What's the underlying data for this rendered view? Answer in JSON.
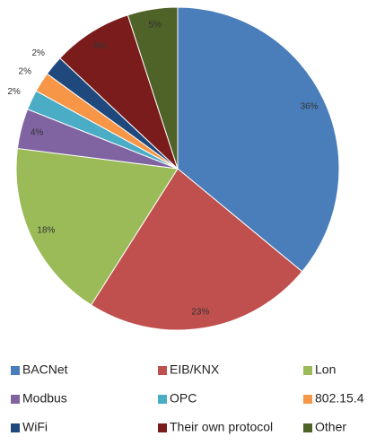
{
  "chart_data": {
    "type": "pie",
    "categories": [
      "BACNet",
      "EIB/KNX",
      "Lon",
      "Modbus",
      "OPC",
      "802.15.4",
      "WiFi",
      "Their  own protocol",
      "Other"
    ],
    "values": [
      36,
      23,
      18,
      4,
      2,
      2,
      2,
      8,
      5
    ],
    "value_labels": [
      "36%",
      "23%",
      "18%",
      "4%",
      "2%",
      "2%",
      "2%",
      "8%",
      "5%"
    ],
    "colors": [
      "#4a7ebb",
      "#c0504d",
      "#9bbb59",
      "#8064a2",
      "#4bacc6",
      "#f79646",
      "#1f497d",
      "#7b1c1c",
      "#4f6228"
    ],
    "legend": "bottom"
  }
}
